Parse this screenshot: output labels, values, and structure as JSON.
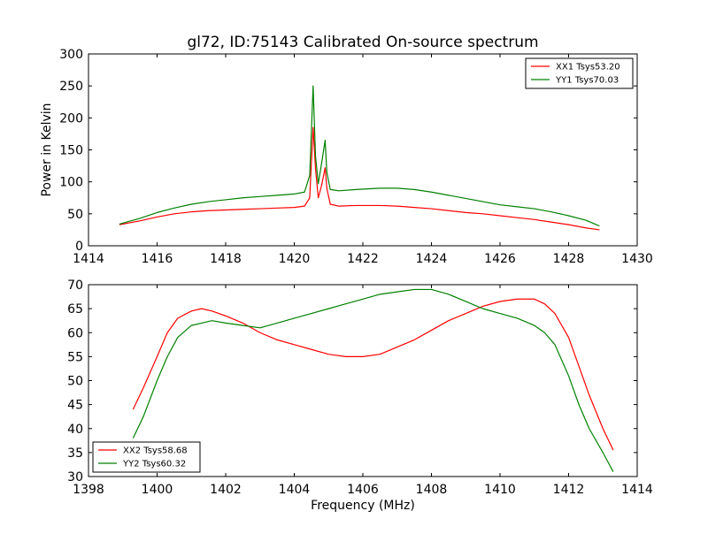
{
  "title": "gl72, ID:75143 Calibrated On-source spectrum",
  "colors": {
    "red": "#ff0000",
    "green": "#008000"
  },
  "chart_data": [
    {
      "type": "line",
      "title": "gl72, ID:75143 Calibrated On-source spectrum",
      "xlabel": "",
      "ylabel": "Power in Kelvin",
      "xlim": [
        1414,
        1430
      ],
      "ylim": [
        0,
        300
      ],
      "xticks": [
        1414,
        1416,
        1418,
        1420,
        1422,
        1424,
        1426,
        1428,
        1430
      ],
      "yticks": [
        0,
        50,
        100,
        150,
        200,
        250,
        300
      ],
      "grid": false,
      "legend": "top-right",
      "series": [
        {
          "name": "XX1 Tsys53.20",
          "color": "#ff0000",
          "x": [
            1414.9,
            1415.5,
            1416.0,
            1416.5,
            1417.0,
            1417.5,
            1418.0,
            1418.5,
            1419.0,
            1419.5,
            1420.0,
            1420.3,
            1420.45,
            1420.55,
            1420.62,
            1420.7,
            1420.8,
            1420.9,
            1420.95,
            1421.05,
            1421.3,
            1421.8,
            1422.5,
            1423.0,
            1423.5,
            1424.0,
            1424.5,
            1425.0,
            1425.5,
            1426.0,
            1426.5,
            1427.0,
            1427.5,
            1428.0,
            1428.5,
            1428.9
          ],
          "y": [
            33,
            39,
            45,
            50,
            53,
            55,
            56,
            57,
            58,
            59,
            60,
            62,
            75,
            185,
            120,
            75,
            95,
            122,
            90,
            65,
            62,
            63,
            63,
            62,
            60,
            58,
            55,
            52,
            50,
            47,
            44,
            41,
            37,
            33,
            28,
            25
          ]
        },
        {
          "name": "YY1 Tsys70.03",
          "color": "#008000",
          "x": [
            1414.9,
            1415.5,
            1416.0,
            1416.5,
            1417.0,
            1417.5,
            1418.0,
            1418.5,
            1419.0,
            1419.5,
            1420.0,
            1420.3,
            1420.45,
            1420.55,
            1420.62,
            1420.7,
            1420.8,
            1420.9,
            1420.95,
            1421.05,
            1421.3,
            1421.8,
            1422.5,
            1423.0,
            1423.5,
            1424.0,
            1424.5,
            1425.0,
            1425.5,
            1426.0,
            1426.5,
            1427.0,
            1427.5,
            1428.0,
            1428.5,
            1428.9
          ],
          "y": [
            34,
            43,
            52,
            59,
            65,
            69,
            72,
            75,
            77,
            79,
            81,
            84,
            110,
            250,
            140,
            97,
            130,
            165,
            115,
            88,
            86,
            88,
            90,
            90,
            88,
            84,
            79,
            74,
            69,
            64,
            61,
            58,
            53,
            47,
            40,
            31
          ]
        }
      ]
    },
    {
      "type": "line",
      "title": "",
      "xlabel": "Frequency (MHz)",
      "ylabel": "",
      "xlim": [
        1398,
        1414
      ],
      "ylim": [
        30,
        70
      ],
      "xticks": [
        1398,
        1400,
        1402,
        1404,
        1406,
        1408,
        1410,
        1412,
        1414
      ],
      "yticks": [
        30,
        35,
        40,
        45,
        50,
        55,
        60,
        65,
        70
      ],
      "grid": false,
      "legend": "bottom-left",
      "series": [
        {
          "name": "XX2 Tsys58.68",
          "color": "#ff0000",
          "x": [
            1399.3,
            1399.6,
            1400.0,
            1400.3,
            1400.6,
            1401.0,
            1401.3,
            1401.6,
            1402.0,
            1402.5,
            1403.0,
            1403.5,
            1404.0,
            1404.5,
            1405.0,
            1405.5,
            1406.0,
            1406.5,
            1407.0,
            1407.5,
            1408.0,
            1408.5,
            1409.0,
            1409.5,
            1410.0,
            1410.5,
            1411.0,
            1411.3,
            1411.6,
            1412.0,
            1412.3,
            1412.6,
            1413.0,
            1413.3
          ],
          "y": [
            44,
            48.5,
            55,
            60,
            63,
            64.5,
            65,
            64.5,
            63.5,
            62,
            60,
            58.5,
            57.5,
            56.5,
            55.5,
            55,
            55,
            55.5,
            57,
            58.5,
            60.5,
            62.5,
            64,
            65.5,
            66.5,
            67,
            67,
            66,
            64,
            59,
            53,
            47,
            40,
            35.5
          ]
        },
        {
          "name": "YY2 Tsys60.32",
          "color": "#008000",
          "x": [
            1399.3,
            1399.6,
            1400.0,
            1400.3,
            1400.6,
            1401.0,
            1401.3,
            1401.6,
            1402.0,
            1402.5,
            1403.0,
            1403.5,
            1404.0,
            1404.5,
            1405.0,
            1405.5,
            1406.0,
            1406.5,
            1407.0,
            1407.5,
            1408.0,
            1408.5,
            1409.0,
            1409.5,
            1410.0,
            1410.5,
            1411.0,
            1411.3,
            1411.6,
            1412.0,
            1412.3,
            1412.6,
            1413.0,
            1413.3
          ],
          "y": [
            38,
            42.5,
            50,
            55,
            59,
            61.5,
            62,
            62.5,
            62,
            61.5,
            61,
            62,
            63,
            64,
            65,
            66,
            67,
            68,
            68.5,
            69,
            69,
            68,
            66.5,
            65,
            64,
            63,
            61.5,
            60,
            57.5,
            51,
            45,
            40,
            35,
            31
          ]
        }
      ]
    }
  ]
}
